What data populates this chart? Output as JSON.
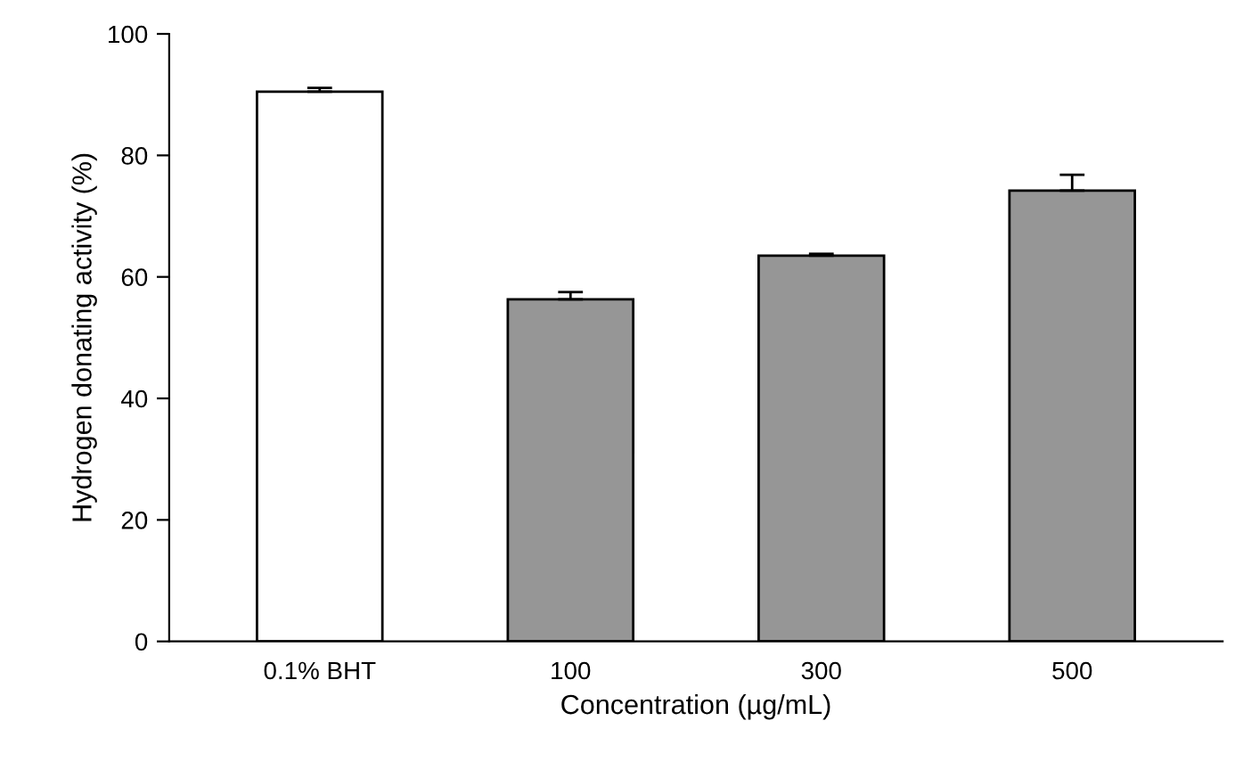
{
  "chart_data": {
    "type": "bar",
    "xlabel": "Concentration (µg/mL)",
    "ylabel": "Hydrogen donating activity (%)",
    "categories": [
      "0.1% BHT",
      "100",
      "300",
      "500"
    ],
    "values": [
      90.5,
      56.3,
      63.5,
      74.2
    ],
    "errors": [
      [
        90.5,
        91.1
      ],
      [
        56.3,
        57.5
      ],
      [
        63.5,
        63.8
      ],
      [
        74.2,
        76.8
      ]
    ],
    "colors": [
      "#ffffff",
      "#969696",
      "#969696",
      "#969696"
    ],
    "ylim": [
      0,
      100
    ],
    "yticks": [
      0,
      20,
      40,
      60,
      80,
      100
    ],
    "grid": false,
    "legend": false
  }
}
